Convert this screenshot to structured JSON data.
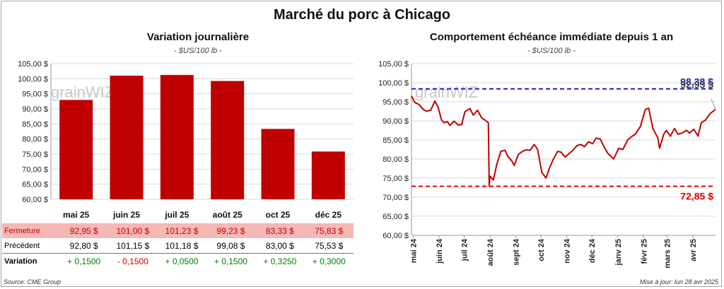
{
  "title": "Marché du porc à Chicago",
  "left_panel": {
    "title": "Variation journalière",
    "unit": "- $US/100 lb -"
  },
  "right_panel": {
    "title": "Comportement échéance immédiate depuis 1 an",
    "unit": "- $US/100 lb -"
  },
  "watermark": "grainWIZ",
  "table": {
    "rows": [
      {
        "label": "Fermeture",
        "cells": [
          "92,95 $",
          "101,00 $",
          "101,23 $",
          "99,23 $",
          "83,33 $",
          "75,83 $"
        ]
      },
      {
        "label": "Précédent",
        "cells": [
          "92,80 $",
          "101,15 $",
          "101,18 $",
          "99,08 $",
          "83,00 $",
          "75,53 $"
        ]
      },
      {
        "label": "Variation",
        "cells": [
          "+ 0,1500",
          "- 0,1500",
          "+ 0,0500",
          "+ 0,1500",
          "+ 0,3250",
          "+ 0,3000"
        ]
      }
    ]
  },
  "footer": {
    "source": "Source: CME Group",
    "updated": "Mise à jour: lun 28 avr 2025"
  },
  "colors": {
    "bar": "#c00000",
    "line": "#c00000",
    "high_line": "#1f1fb4",
    "low_line": "#e00000",
    "positive": "#008000",
    "negative": "#d00000",
    "close_row_bg": "#f6b7b7"
  },
  "chart_data": [
    {
      "type": "bar",
      "categories": [
        "mai 25",
        "juin 25",
        "juil 25",
        "août 25",
        "oct 25",
        "déc 25"
      ],
      "values": [
        92.95,
        101.0,
        101.23,
        99.23,
        83.33,
        75.83
      ],
      "ylim": [
        60,
        105
      ],
      "yticks": [
        60,
        65,
        70,
        75,
        80,
        85,
        90,
        95,
        100,
        105
      ],
      "ytick_labels": [
        "60,00 $",
        "65,00 $",
        "70,00 $",
        "75,00 $",
        "80,00 $",
        "85,00 $",
        "90,00 $",
        "95,00 $",
        "100,00 $",
        "105,00 $"
      ],
      "grid": true
    },
    {
      "type": "line",
      "ylim": [
        60,
        105
      ],
      "yticks": [
        60,
        65,
        70,
        75,
        80,
        85,
        90,
        95,
        100,
        105
      ],
      "ytick_labels": [
        "60,00 $",
        "65,00 $",
        "70,00 $",
        "75,00 $",
        "80,00 $",
        "85,00 $",
        "90,00 $",
        "95,00 $",
        "100,00 $",
        "105,00 $"
      ],
      "xlim": [
        "2024-04-29",
        "2025-04-28"
      ],
      "xtick_dates": [
        "2024-05-01",
        "2024-06-01",
        "2024-07-01",
        "2024-08-01",
        "2024-09-01",
        "2024-10-01",
        "2024-11-01",
        "2024-12-01",
        "2025-01-01",
        "2025-02-01",
        "2025-03-01",
        "2025-04-01"
      ],
      "xtick_labels": [
        "mai 24",
        "juin 24",
        "juil 24",
        "août 24",
        "sept 24",
        "oct 24",
        "nov 24",
        "déc 24",
        "janv 25",
        "févr 25",
        "mars 25",
        "avr 25"
      ],
      "grid": true,
      "reference_lines": [
        {
          "value": 98.38,
          "label": "98,38 $"
        },
        {
          "value": 72.85,
          "label": "72,85 $"
        }
      ],
      "last_value_label": "92,95 $",
      "series": [
        {
          "x": [
            "2024-04-29",
            "2024-05-03",
            "2024-05-08",
            "2024-05-13",
            "2024-05-17",
            "2024-05-22",
            "2024-05-27",
            "2024-05-31",
            "2024-06-04",
            "2024-06-07",
            "2024-06-11",
            "2024-06-14",
            "2024-06-19",
            "2024-06-24",
            "2024-06-28",
            "2024-07-02",
            "2024-07-08",
            "2024-07-12",
            "2024-07-17",
            "2024-07-22",
            "2024-07-26",
            "2024-07-30",
            "2024-07-31",
            "2024-08-01",
            "2024-08-05",
            "2024-08-09",
            "2024-08-14",
            "2024-08-19",
            "2024-08-22",
            "2024-08-27",
            "2024-08-30",
            "2024-09-04",
            "2024-09-09",
            "2024-09-13",
            "2024-09-18",
            "2024-09-23",
            "2024-09-27",
            "2024-10-02",
            "2024-10-07",
            "2024-10-11",
            "2024-10-16",
            "2024-10-21",
            "2024-10-25",
            "2024-10-30",
            "2024-11-04",
            "2024-11-08",
            "2024-11-13",
            "2024-11-18",
            "2024-11-22",
            "2024-11-27",
            "2024-12-02",
            "2024-12-06",
            "2024-12-11",
            "2024-12-16",
            "2024-12-20",
            "2024-12-27",
            "2025-01-02",
            "2025-01-07",
            "2025-01-13",
            "2025-01-17",
            "2025-01-22",
            "2025-01-28",
            "2025-02-03",
            "2025-02-07",
            "2025-02-12",
            "2025-02-18",
            "2025-02-20",
            "2025-02-25",
            "2025-02-28",
            "2025-03-05",
            "2025-03-10",
            "2025-03-14",
            "2025-03-19",
            "2025-03-24",
            "2025-03-28",
            "2025-04-02",
            "2025-04-07",
            "2025-04-11",
            "2025-04-16",
            "2025-04-22",
            "2025-04-28"
          ],
          "y": [
            96.5,
            94.8,
            94.3,
            93.0,
            92.5,
            92.8,
            95.2,
            93.5,
            90.2,
            89.5,
            89.8,
            88.8,
            89.9,
            88.9,
            89.0,
            92.4,
            93.2,
            91.5,
            92.8,
            90.8,
            90.2,
            89.5,
            72.9,
            75.5,
            74.5,
            78.5,
            82.0,
            82.3,
            80.8,
            79.5,
            78.3,
            81.2,
            82.0,
            82.4,
            82.3,
            83.8,
            82.5,
            76.5,
            75.0,
            77.5,
            80.0,
            82.0,
            81.8,
            80.5,
            81.5,
            82.2,
            83.5,
            83.8,
            83.2,
            84.5,
            84.0,
            85.5,
            85.2,
            83.0,
            81.5,
            80.0,
            82.8,
            82.5,
            85.0,
            85.8,
            86.5,
            88.5,
            93.0,
            93.3,
            88.0,
            85.5,
            82.8,
            86.5,
            87.5,
            86.0,
            88.0,
            86.5,
            86.8,
            87.5,
            86.8,
            87.8,
            86.0,
            89.5,
            90.2,
            92.0,
            92.95
          ]
        }
      ]
    }
  ]
}
